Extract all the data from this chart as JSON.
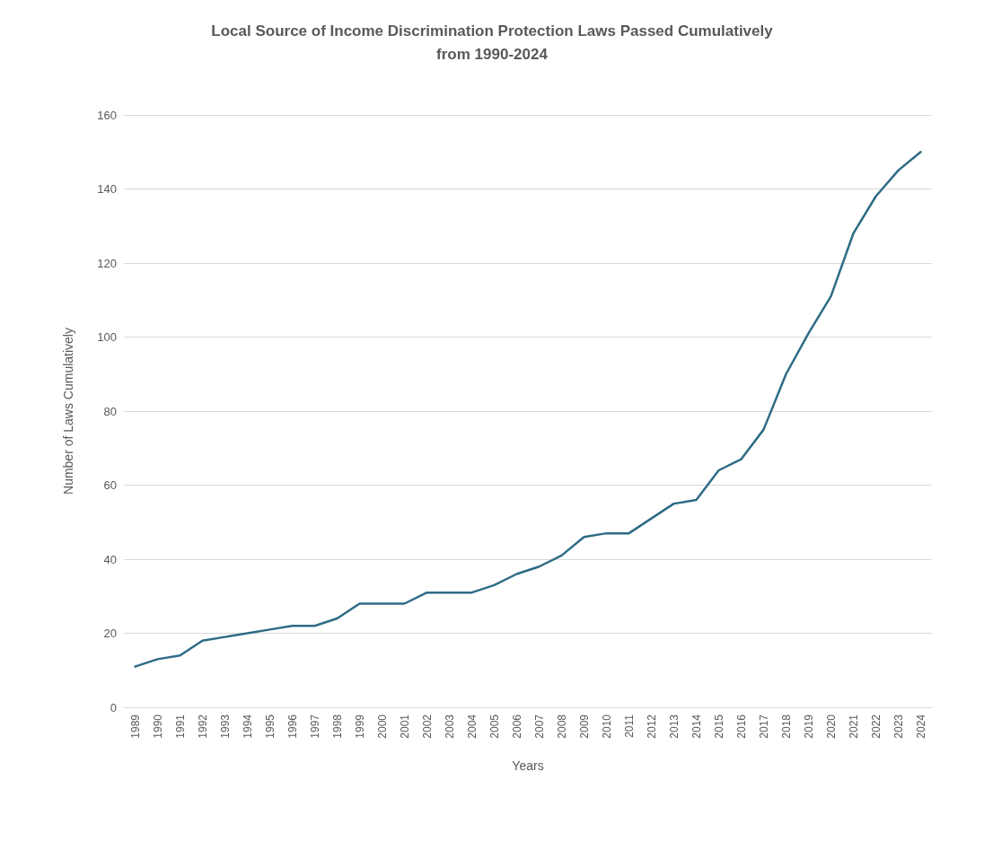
{
  "chart_data": {
    "type": "line",
    "title": "Local Source of Income Discrimination Protection Laws Passed Cumulatively\nfrom 1990-2024",
    "xlabel": "Years",
    "ylabel": "Number of Laws Cumulatively",
    "categories": [
      "1989",
      "1990",
      "1991",
      "1992",
      "1993",
      "1994",
      "1995",
      "1996",
      "1997",
      "1998",
      "1999",
      "2000",
      "2001",
      "2002",
      "2003",
      "2004",
      "2005",
      "2006",
      "2007",
      "2008",
      "2009",
      "2010",
      "2011",
      "2012",
      "2013",
      "2014",
      "2015",
      "2016",
      "2017",
      "2018",
      "2019",
      "2020",
      "2021",
      "2022",
      "2023",
      "2024"
    ],
    "series": [
      {
        "color": "#2e6b86",
        "values": [
          11,
          13,
          14,
          18,
          19,
          20,
          21,
          22,
          22,
          24,
          28,
          28,
          28,
          31,
          31,
          31,
          33,
          36,
          38,
          41,
          46,
          47,
          47,
          51,
          55,
          56,
          64,
          67,
          75,
          90,
          101,
          111,
          128,
          138,
          145,
          150
        ]
      }
    ],
    "ylim": [
      0,
      160
    ],
    "yticks": [
      0,
      20,
      40,
      60,
      80,
      100,
      120,
      140,
      160
    ],
    "grid": "y",
    "marker": "none",
    "line_style": "solid"
  }
}
